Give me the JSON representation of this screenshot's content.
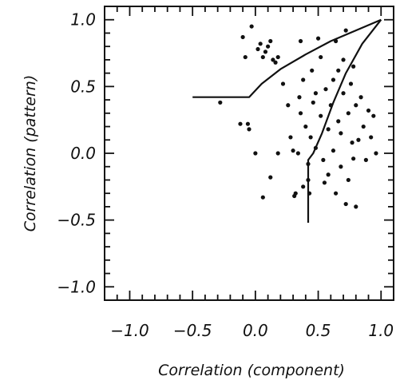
{
  "chart_data": {
    "type": "scatter",
    "xlabel": "Correlation (component)",
    "ylabel": "Correlation (pattern)",
    "xlim": [
      -1.2,
      1.1
    ],
    "ylim": [
      -1.1,
      1.1
    ],
    "x_ticks": [
      -1.0,
      -0.5,
      0.0,
      0.5,
      1.0
    ],
    "x_tick_labels": [
      "−1.0",
      "−0.5",
      "0.0",
      "0.5",
      "1.0"
    ],
    "y_ticks": [
      1.0,
      0.5,
      0.0,
      -0.5,
      -1.0
    ],
    "y_tick_labels": [
      "1.0",
      "0.5",
      "0.0",
      "−0.5",
      "−1.0"
    ],
    "grid": false,
    "colors": {
      "ink": "#111111",
      "background": "#ffffff"
    },
    "boundary_curves": [
      {
        "points": [
          [
            -0.5,
            0.42
          ],
          [
            -0.05,
            0.42
          ],
          [
            0.05,
            0.52
          ],
          [
            0.2,
            0.63
          ],
          [
            0.4,
            0.74
          ],
          [
            0.6,
            0.84
          ],
          [
            0.8,
            0.92
          ],
          [
            1.0,
            1.0
          ]
        ]
      },
      {
        "points": [
          [
            1.0,
            1.0
          ],
          [
            0.85,
            0.82
          ],
          [
            0.72,
            0.6
          ],
          [
            0.62,
            0.38
          ],
          [
            0.53,
            0.15
          ],
          [
            0.46,
            0.0
          ],
          [
            0.42,
            -0.05
          ],
          [
            0.42,
            -0.52
          ]
        ]
      }
    ],
    "points": [
      [
        -0.28,
        0.38
      ],
      [
        -0.12,
        0.22
      ],
      [
        -0.06,
        0.22
      ],
      [
        -0.05,
        0.18
      ],
      [
        0.0,
        0.0
      ],
      [
        0.06,
        -0.33
      ],
      [
        -0.1,
        0.87
      ],
      [
        -0.08,
        0.72
      ],
      [
        -0.03,
        0.95
      ],
      [
        0.02,
        0.78
      ],
      [
        0.04,
        0.82
      ],
      [
        0.06,
        0.72
      ],
      [
        0.08,
        0.76
      ],
      [
        0.1,
        0.8
      ],
      [
        0.12,
        0.84
      ],
      [
        0.14,
        0.7
      ],
      [
        0.16,
        0.68
      ],
      [
        0.18,
        0.72
      ],
      [
        0.12,
        -0.18
      ],
      [
        0.18,
        0.0
      ],
      [
        0.22,
        0.52
      ],
      [
        0.26,
        0.36
      ],
      [
        0.28,
        0.12
      ],
      [
        0.3,
        0.02
      ],
      [
        0.31,
        -0.32
      ],
      [
        0.32,
        -0.3
      ],
      [
        0.35,
        0.42
      ],
      [
        0.36,
        0.3
      ],
      [
        0.38,
        0.55
      ],
      [
        0.4,
        0.2
      ],
      [
        0.42,
        -0.08
      ],
      [
        0.42,
        -0.2
      ],
      [
        0.43,
        -0.3
      ],
      [
        0.44,
        0.12
      ],
      [
        0.45,
        0.62
      ],
      [
        0.46,
        0.38
      ],
      [
        0.48,
        0.04
      ],
      [
        0.5,
        0.86
      ],
      [
        0.52,
        0.72
      ],
      [
        0.52,
        0.28
      ],
      [
        0.54,
        -0.05
      ],
      [
        0.55,
        -0.22
      ],
      [
        0.56,
        0.48
      ],
      [
        0.58,
        0.18
      ],
      [
        0.58,
        -0.16
      ],
      [
        0.6,
        0.36
      ],
      [
        0.62,
        0.55
      ],
      [
        0.62,
        0.02
      ],
      [
        0.64,
        0.84
      ],
      [
        0.64,
        -0.3
      ],
      [
        0.66,
        0.62
      ],
      [
        0.66,
        0.24
      ],
      [
        0.68,
        0.15
      ],
      [
        0.68,
        -0.1
      ],
      [
        0.7,
        0.7
      ],
      [
        0.7,
        0.45
      ],
      [
        0.72,
        0.92
      ],
      [
        0.72,
        -0.38
      ],
      [
        0.74,
        0.3
      ],
      [
        0.74,
        -0.2
      ],
      [
        0.76,
        0.52
      ],
      [
        0.77,
        0.08
      ],
      [
        0.78,
        0.65
      ],
      [
        0.78,
        -0.04
      ],
      [
        0.8,
        0.36
      ],
      [
        0.8,
        -0.4
      ],
      [
        0.82,
        0.1
      ],
      [
        0.84,
        0.42
      ],
      [
        0.86,
        0.2
      ],
      [
        0.88,
        -0.05
      ],
      [
        0.9,
        0.32
      ],
      [
        0.92,
        0.12
      ],
      [
        0.94,
        0.28
      ],
      [
        0.96,
        0.0
      ],
      [
        0.34,
        0.0
      ],
      [
        0.38,
        -0.25
      ],
      [
        0.48,
        0.45
      ],
      [
        0.36,
        0.84
      ]
    ]
  }
}
